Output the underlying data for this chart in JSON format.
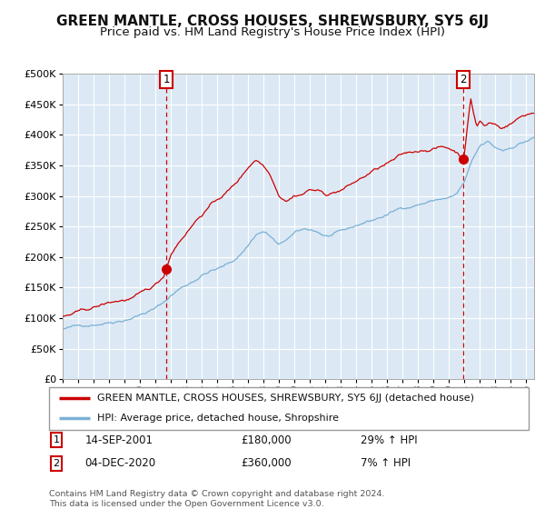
{
  "title": "GREEN MANTLE, CROSS HOUSES, SHREWSBURY, SY5 6JJ",
  "subtitle": "Price paid vs. HM Land Registry's House Price Index (HPI)",
  "title_fontsize": 11,
  "subtitle_fontsize": 9.5,
  "plot_bg_color": "#dce9f5",
  "fig_bg_color": "#ffffff",
  "red_line_color": "#cc0000",
  "blue_line_color": "#7ab0d4",
  "marker_color": "#cc0000",
  "vline_color": "#cc0000",
  "ylabel_ticks": [
    "£0",
    "£50K",
    "£100K",
    "£150K",
    "£200K",
    "£250K",
    "£300K",
    "£350K",
    "£400K",
    "£450K",
    "£500K"
  ],
  "ytick_values": [
    0,
    50000,
    100000,
    150000,
    200000,
    250000,
    300000,
    350000,
    400000,
    450000,
    500000
  ],
  "ylim": [
    0,
    500000
  ],
  "xlim_start": 1995.0,
  "xlim_end": 2025.5,
  "xtick_years": [
    1995,
    1996,
    1997,
    1998,
    1999,
    2000,
    2001,
    2002,
    2003,
    2004,
    2005,
    2006,
    2007,
    2008,
    2009,
    2010,
    2011,
    2012,
    2013,
    2014,
    2015,
    2016,
    2017,
    2018,
    2019,
    2020,
    2021,
    2022,
    2023,
    2024,
    2025
  ],
  "sale1_x": 2001.71,
  "sale1_y": 180000,
  "sale1_label": "1",
  "sale1_date": "14-SEP-2001",
  "sale1_price": "£180,000",
  "sale1_hpi": "29% ↑ HPI",
  "sale2_x": 2020.92,
  "sale2_y": 360000,
  "sale2_label": "2",
  "sale2_date": "04-DEC-2020",
  "sale2_price": "£360,000",
  "sale2_hpi": "7% ↑ HPI",
  "legend_line1": "GREEN MANTLE, CROSS HOUSES, SHREWSBURY, SY5 6JJ (detached house)",
  "legend_line2": "HPI: Average price, detached house, Shropshire",
  "footer1": "Contains HM Land Registry data © Crown copyright and database right 2024.",
  "footer2": "This data is licensed under the Open Government Licence v3.0.",
  "grid_color": "#ffffff",
  "grid_linewidth": 0.8,
  "hpi_waypoints": [
    [
      1995.0,
      82000
    ],
    [
      1996.0,
      86000
    ],
    [
      1997.0,
      91000
    ],
    [
      1998.0,
      96000
    ],
    [
      1999.0,
      101000
    ],
    [
      2000.0,
      109000
    ],
    [
      2001.0,
      118000
    ],
    [
      2001.5,
      126000
    ],
    [
      2002.0,
      138000
    ],
    [
      2002.5,
      148000
    ],
    [
      2003.0,
      155000
    ],
    [
      2003.5,
      163000
    ],
    [
      2004.0,
      172000
    ],
    [
      2004.5,
      178000
    ],
    [
      2005.0,
      181000
    ],
    [
      2005.5,
      186000
    ],
    [
      2006.0,
      193000
    ],
    [
      2006.5,
      205000
    ],
    [
      2007.0,
      220000
    ],
    [
      2007.5,
      238000
    ],
    [
      2008.0,
      243000
    ],
    [
      2008.5,
      233000
    ],
    [
      2009.0,
      218000
    ],
    [
      2009.5,
      228000
    ],
    [
      2010.0,
      237000
    ],
    [
      2010.5,
      242000
    ],
    [
      2011.0,
      243000
    ],
    [
      2011.5,
      240000
    ],
    [
      2012.0,
      233000
    ],
    [
      2012.5,
      235000
    ],
    [
      2013.0,
      238000
    ],
    [
      2013.5,
      242000
    ],
    [
      2014.0,
      248000
    ],
    [
      2014.5,
      254000
    ],
    [
      2015.0,
      258000
    ],
    [
      2015.5,
      263000
    ],
    [
      2016.0,
      268000
    ],
    [
      2016.5,
      274000
    ],
    [
      2017.0,
      280000
    ],
    [
      2017.5,
      283000
    ],
    [
      2018.0,
      287000
    ],
    [
      2018.5,
      290000
    ],
    [
      2019.0,
      293000
    ],
    [
      2019.5,
      296000
    ],
    [
      2020.0,
      297000
    ],
    [
      2020.5,
      303000
    ],
    [
      2021.0,
      322000
    ],
    [
      2021.5,
      355000
    ],
    [
      2022.0,
      378000
    ],
    [
      2022.5,
      385000
    ],
    [
      2023.0,
      375000
    ],
    [
      2023.5,
      372000
    ],
    [
      2024.0,
      378000
    ],
    [
      2024.5,
      385000
    ],
    [
      2025.0,
      390000
    ],
    [
      2025.5,
      395000
    ]
  ],
  "red_waypoints": [
    [
      1995.0,
      103000
    ],
    [
      1995.5,
      106000
    ],
    [
      1996.0,
      109000
    ],
    [
      1996.5,
      112000
    ],
    [
      1997.0,
      116000
    ],
    [
      1997.5,
      120000
    ],
    [
      1998.0,
      124000
    ],
    [
      1998.5,
      127000
    ],
    [
      1999.0,
      129000
    ],
    [
      1999.5,
      132000
    ],
    [
      2000.0,
      137000
    ],
    [
      2000.5,
      143000
    ],
    [
      2001.0,
      152000
    ],
    [
      2001.5,
      165000
    ],
    [
      2001.71,
      180000
    ],
    [
      2002.0,
      205000
    ],
    [
      2002.5,
      225000
    ],
    [
      2003.0,
      242000
    ],
    [
      2003.5,
      258000
    ],
    [
      2004.0,
      272000
    ],
    [
      2004.5,
      285000
    ],
    [
      2005.0,
      295000
    ],
    [
      2005.5,
      305000
    ],
    [
      2006.0,
      316000
    ],
    [
      2006.5,
      330000
    ],
    [
      2007.0,
      348000
    ],
    [
      2007.5,
      362000
    ],
    [
      2008.0,
      352000
    ],
    [
      2008.5,
      335000
    ],
    [
      2009.0,
      305000
    ],
    [
      2009.5,
      298000
    ],
    [
      2010.0,
      306000
    ],
    [
      2010.5,
      308000
    ],
    [
      2011.0,
      315000
    ],
    [
      2011.5,
      312000
    ],
    [
      2012.0,
      305000
    ],
    [
      2012.5,
      308000
    ],
    [
      2013.0,
      312000
    ],
    [
      2013.5,
      318000
    ],
    [
      2014.0,
      325000
    ],
    [
      2014.5,
      332000
    ],
    [
      2015.0,
      340000
    ],
    [
      2015.5,
      346000
    ],
    [
      2016.0,
      352000
    ],
    [
      2016.5,
      358000
    ],
    [
      2017.0,
      365000
    ],
    [
      2017.5,
      368000
    ],
    [
      2018.0,
      372000
    ],
    [
      2018.5,
      375000
    ],
    [
      2019.0,
      378000
    ],
    [
      2019.5,
      380000
    ],
    [
      2020.0,
      378000
    ],
    [
      2020.5,
      372000
    ],
    [
      2020.92,
      360000
    ],
    [
      2021.0,
      375000
    ],
    [
      2021.2,
      420000
    ],
    [
      2021.4,
      460000
    ],
    [
      2021.6,
      435000
    ],
    [
      2021.8,
      415000
    ],
    [
      2022.0,
      425000
    ],
    [
      2022.3,
      415000
    ],
    [
      2022.6,
      420000
    ],
    [
      2023.0,
      418000
    ],
    [
      2023.3,
      412000
    ],
    [
      2023.6,
      415000
    ],
    [
      2024.0,
      420000
    ],
    [
      2024.3,
      425000
    ],
    [
      2024.6,
      430000
    ],
    [
      2025.0,
      435000
    ],
    [
      2025.5,
      438000
    ]
  ]
}
